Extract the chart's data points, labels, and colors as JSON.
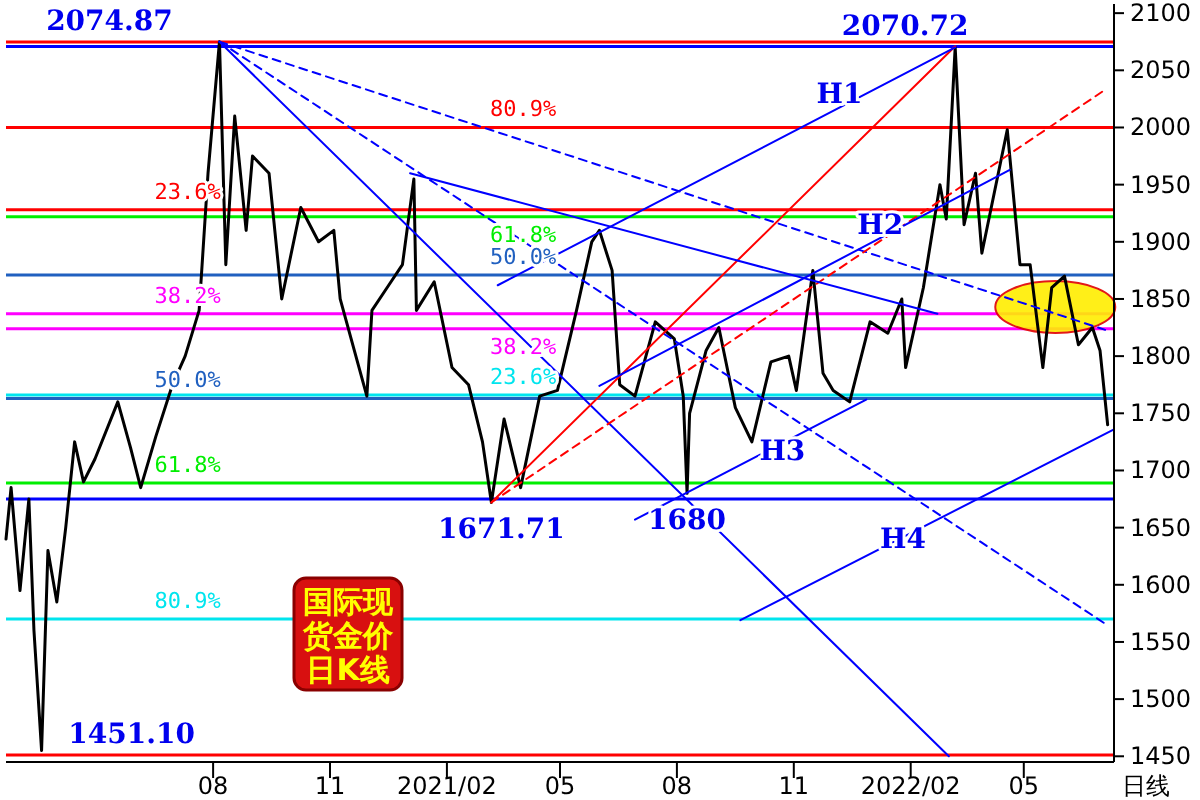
{
  "chart_data": {
    "type": "line",
    "title": "国际现货金价日K线",
    "xlabel": "日线",
    "x": [
      "2020-02-20",
      "2020-02-24",
      "2020-03-02",
      "2020-03-09",
      "2020-03-13",
      "2020-03-19",
      "2020-03-24",
      "2020-03-31",
      "2020-04-07",
      "2020-04-14",
      "2020-04-21",
      "2020-04-30",
      "2020-05-18",
      "2020-05-28",
      "2020-06-05",
      "2020-06-17",
      "2020-06-30",
      "2020-07-10",
      "2020-07-21",
      "2020-07-28",
      "2020-08-06",
      "2020-08-11",
      "2020-08-18",
      "2020-08-27",
      "2020-09-01",
      "2020-09-14",
      "2020-09-24",
      "2020-10-09",
      "2020-10-23",
      "2020-11-04",
      "2020-11-09",
      "2020-11-30",
      "2020-12-04",
      "2020-12-16",
      "2020-12-28",
      "2021-01-06",
      "2021-01-08",
      "2021-01-22",
      "2021-02-05",
      "2021-02-18",
      "2021-03-01",
      "2021-03-08",
      "2021-03-18",
      "2021-03-31",
      "2021-04-15",
      "2021-04-29",
      "2021-05-14",
      "2021-05-26",
      "2021-06-01",
      "2021-06-11",
      "2021-06-17",
      "2021-06-29",
      "2021-07-15",
      "2021-07-30",
      "2021-08-06",
      "2021-08-09",
      "2021-08-11",
      "2021-08-24",
      "2021-09-03",
      "2021-09-16",
      "2021-09-29",
      "2021-10-14",
      "2021-10-28",
      "2021-11-03",
      "2021-11-16",
      "2021-11-24",
      "2021-12-02",
      "2021-12-15",
      "2021-12-31",
      "2022-01-14",
      "2022-01-25",
      "2022-01-28",
      "2022-02-11",
      "2022-02-24",
      "2022-03-01",
      "2022-03-08",
      "2022-03-15",
      "2022-03-24",
      "2022-03-29",
      "2022-04-18",
      "2022-04-28",
      "2022-05-06",
      "2022-05-16",
      "2022-05-23",
      "2022-06-02",
      "2022-06-13",
      "2022-06-24",
      "2022-06-30",
      "2022-07-06"
    ],
    "series": [
      {
        "color": "#000000",
        "values": [
          1640,
          1685,
          1595,
          1675,
          1560,
          1455,
          1630,
          1585,
          1650,
          1725,
          1690,
          1710,
          1760,
          1720,
          1685,
          1730,
          1775,
          1800,
          1840,
          1960,
          2075,
          1880,
          2010,
          1910,
          1975,
          1960,
          1850,
          1930,
          1900,
          1910,
          1850,
          1765,
          1840,
          1860,
          1880,
          1955,
          1840,
          1865,
          1790,
          1775,
          1725,
          1672,
          1745,
          1685,
          1765,
          1770,
          1840,
          1900,
          1910,
          1875,
          1775,
          1765,
          1830,
          1815,
          1765,
          1680,
          1750,
          1805,
          1825,
          1755,
          1725,
          1795,
          1800,
          1770,
          1875,
          1785,
          1770,
          1760,
          1830,
          1820,
          1850,
          1790,
          1860,
          1950,
          1920,
          2070,
          1915,
          1960,
          1890,
          1998,
          1880,
          1880,
          1790,
          1860,
          1870,
          1810,
          1825,
          1805,
          1740
        ]
      },
      {
        "type": "line",
        "color": "#0000ff",
        "line_style": "solid",
        "x": [
          "2020-08-06",
          "2022-03-03"
        ],
        "values": [
          2075,
          1450
        ]
      },
      {
        "type": "line",
        "color": "#0000ff",
        "line_style": "dashed",
        "x": [
          "2020-08-06",
          "2022-07-04"
        ],
        "values": [
          2075,
          1566
        ]
      },
      {
        "type": "line",
        "color": "#0000ff",
        "line_style": "dashed",
        "x": [
          "2020-08-06",
          "2022-07-04"
        ],
        "values": [
          2075,
          1823
        ]
      },
      {
        "type": "line",
        "color": "#ff0000",
        "line_style": "solid",
        "x": [
          "2021-03-08",
          "2022-03-08"
        ],
        "values": [
          1672,
          2071
        ]
      },
      {
        "type": "line",
        "color": "#ff0000",
        "line_style": "dashed",
        "x": [
          "2021-03-08",
          "2022-07-04"
        ],
        "values": [
          1672,
          2033
        ]
      },
      {
        "type": "line",
        "color": "#0000ff",
        "line_style": "solid",
        "x": [
          "2021-03-13",
          "2022-03-08"
        ],
        "values": [
          1862,
          2070
        ]
      },
      {
        "type": "line",
        "color": "#0000ff",
        "line_style": "solid",
        "x": [
          "2021-06-01",
          "2022-04-20"
        ],
        "values": [
          1774,
          1963
        ]
      },
      {
        "type": "line",
        "color": "#0000ff",
        "line_style": "solid",
        "x": [
          "2021-06-29",
          "2021-12-28"
        ],
        "values": [
          1657,
          1762
        ]
      },
      {
        "type": "line",
        "color": "#0000ff",
        "line_style": "solid",
        "x": [
          "2021-09-20",
          "2022-07-11"
        ],
        "values": [
          1569,
          1736
        ]
      },
      {
        "type": "line",
        "color": "#0000ff",
        "line_style": "solid",
        "x": [
          "2021-01-03",
          "2022-02-22"
        ],
        "values": [
          1960,
          1837
        ]
      }
    ],
    "xlim": [
      "2020-02-20",
      "2022-07-11"
    ],
    "xticks": [
      {
        "value": "2020-08-01",
        "label": "08"
      },
      {
        "value": "2020-11-01",
        "label": "11"
      },
      {
        "value": "2021-02-01",
        "label": "2021/02"
      },
      {
        "value": "2021-05-01",
        "label": "05"
      },
      {
        "value": "2021-08-01",
        "label": "08"
      },
      {
        "value": "2021-11-01",
        "label": "11"
      },
      {
        "value": "2022-02-01",
        "label": "2022/02"
      },
      {
        "value": "2022-05-01",
        "label": "05"
      }
    ],
    "ylim": [
      1445,
      2108
    ],
    "yticks": [
      1450,
      1500,
      1550,
      1600,
      1650,
      1700,
      1750,
      1800,
      1850,
      1900,
      1950,
      2000,
      2050,
      2100
    ],
    "ref_lines": [
      {
        "axis": "y",
        "value": 2074.87,
        "color": "#ff0000"
      },
      {
        "axis": "y",
        "value": 2070.72,
        "color": "#0000ff"
      },
      {
        "axis": "y",
        "value": 2000,
        "color": "#ff0000"
      },
      {
        "axis": "y",
        "value": 1928,
        "color": "#ff0000"
      },
      {
        "axis": "y",
        "value": 1922,
        "color": "#00ee00"
      },
      {
        "axis": "y",
        "value": 1871,
        "color": "#2060c0"
      },
      {
        "axis": "y",
        "value": 1837,
        "color": "#ff00ff"
      },
      {
        "axis": "y",
        "value": 1824,
        "color": "#ff00ff"
      },
      {
        "axis": "y",
        "value": 1766,
        "color": "#00e5ee"
      },
      {
        "axis": "y",
        "value": 1763,
        "color": "#2060c0"
      },
      {
        "axis": "y",
        "value": 1689,
        "color": "#00ee00"
      },
      {
        "axis": "y",
        "value": 1675,
        "color": "#0000ff"
      },
      {
        "axis": "y",
        "value": 1570,
        "color": "#00e5ee"
      },
      {
        "axis": "y",
        "value": 1451.1,
        "color": "#ff0000"
      }
    ],
    "annotations": [
      {
        "text": "2074.87",
        "x": "2020-08-06",
        "y": 2074.87
      },
      {
        "text": "2070.72",
        "x": "2022-03-08",
        "y": 2070.72
      },
      {
        "text": "1671.71",
        "x": "2021-03-08",
        "y": 1672
      },
      {
        "text": "1680",
        "x": "2021-08-09",
        "y": 1680
      },
      {
        "text": "1451.10",
        "x": "2020-03-19",
        "y": 1451.1
      },
      {
        "text": "H1",
        "x": "2021-12-07",
        "y": 2028
      },
      {
        "text": "H2",
        "x": "2022-01-08",
        "y": 1907
      },
      {
        "text": "H3",
        "x": "2021-10-23",
        "y": 1723
      },
      {
        "text": "H4",
        "x": "2022-01-26",
        "y": 1639
      },
      {
        "text": "23.6%",
        "x": "2020-07-12",
        "y": 1928
      },
      {
        "text": "38.2%",
        "x": "2020-07-12",
        "y": 1837
      },
      {
        "text": "50.0%",
        "x": "2020-07-12",
        "y": 1763
      },
      {
        "text": "61.8%",
        "x": "2020-07-12",
        "y": 1689
      },
      {
        "text": "80.9%",
        "x": "2020-07-12",
        "y": 1570
      },
      {
        "text": "80.9%",
        "x": "2021-04-02",
        "y": 2000
      },
      {
        "text": "61.8%",
        "x": "2021-04-02",
        "y": 1922
      },
      {
        "text": "50.0%",
        "x": "2021-04-02",
        "y": 1871
      },
      {
        "text": "38.2%",
        "x": "2021-04-02",
        "y": 1824
      },
      {
        "text": "23.6%",
        "x": "2021-04-02",
        "y": 1766
      }
    ]
  }
}
